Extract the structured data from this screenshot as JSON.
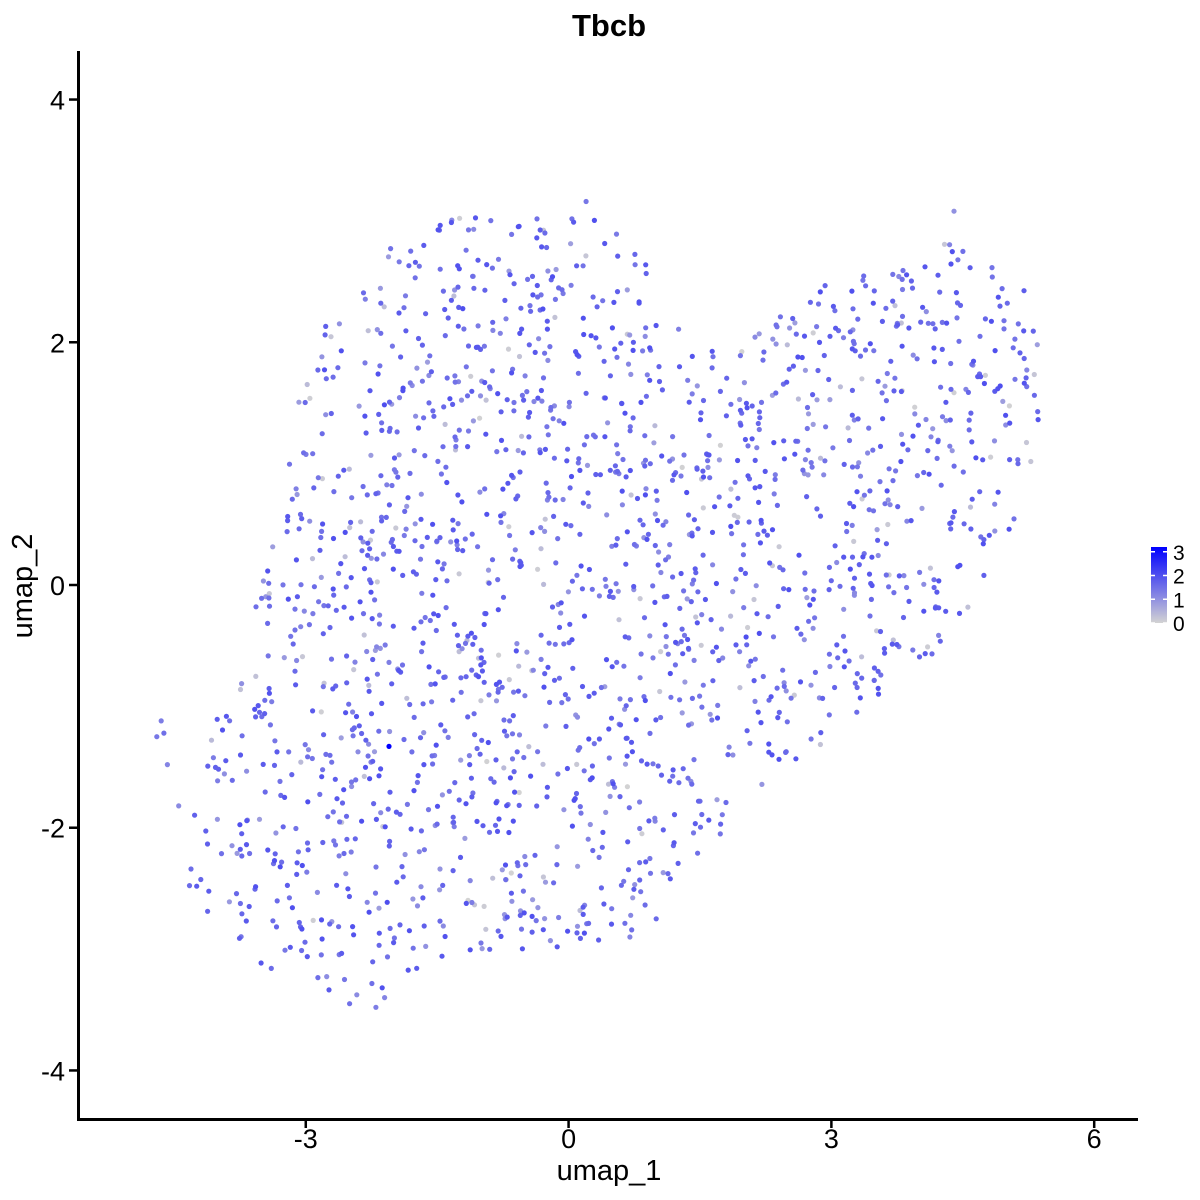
{
  "chart_data": {
    "type": "scatter",
    "title": "Tbcb",
    "xlabel": "umap_1",
    "ylabel": "umap_2",
    "xlim": [
      -5.6,
      6.5
    ],
    "ylim": [
      -4.4,
      4.4
    ],
    "x_ticks": [
      -3,
      0,
      3,
      6
    ],
    "x_tick_labels": [
      "-3",
      "0",
      "3",
      "6"
    ],
    "y_ticks": [
      -4,
      -2,
      0,
      2,
      4
    ],
    "y_tick_labels": [
      "-4",
      "-2",
      "0",
      "2",
      "4"
    ],
    "grid": false,
    "legend": {
      "placement": "right",
      "type": "colorbar",
      "min": 0,
      "max": 3.2,
      "ticks": [
        0,
        1,
        2,
        3
      ],
      "tick_labels": [
        "0",
        "1",
        "2",
        "3"
      ],
      "color_low": "#d3d3d3",
      "color_high": "#0000ff"
    },
    "approx_point_count": 1900,
    "points": [
      [
        -4.7,
        -1.25,
        1.4
      ],
      [
        -4.65,
        -1.12,
        1.3
      ],
      [
        -4.62,
        -1.22,
        1.5
      ],
      [
        -4.58,
        -1.48,
        1.2
      ],
      [
        -4.45,
        -1.82,
        1.1
      ],
      [
        -2.05,
        -1.33,
        3.2
      ],
      [
        0.2,
        3.16,
        1.4
      ],
      [
        4.4,
        3.08,
        1.0
      ],
      [
        5.35,
        1.98,
        0.8
      ],
      [
        -2.2,
        -3.48,
        1.3
      ],
      [
        -2.1,
        -3.4,
        1.2
      ],
      [
        -2.5,
        -3.45,
        1.5
      ],
      [
        1.0,
        -2.75,
        1.6
      ],
      [
        -1.0,
        -2.95,
        1.4
      ],
      [
        0.7,
        -2.9,
        1.2
      ]
    ]
  }
}
